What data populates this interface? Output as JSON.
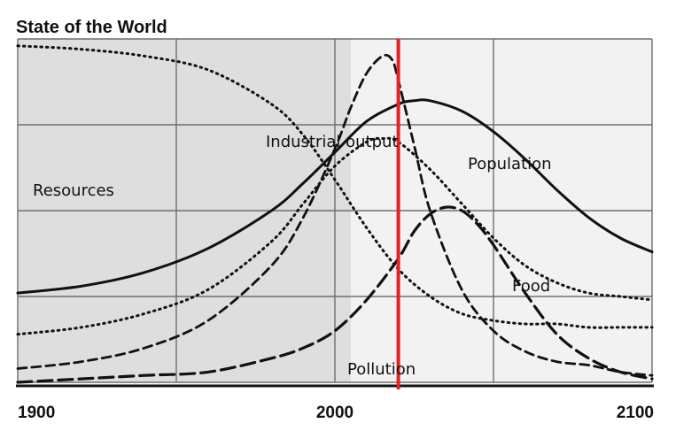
{
  "chart_data": {
    "type": "line",
    "title": "State of the World",
    "xlabel": "",
    "ylabel": "",
    "xlim": [
      1900,
      2100
    ],
    "ylim": [
      0,
      1
    ],
    "grid": true,
    "x_ticks": [
      "1900",
      "2000",
      "2100"
    ],
    "x_minor_gridlines": [
      1950,
      2050
    ],
    "shaded_region": [
      1900,
      2005
    ],
    "marker_line": {
      "x": 2020,
      "color": "#e02424"
    },
    "series": [
      {
        "name": "Population",
        "style": "solid",
        "x": [
          1900,
          1920,
          1940,
          1960,
          1980,
          1990,
          2000,
          2010,
          2020,
          2025,
          2030,
          2040,
          2050,
          2060,
          2070,
          2080,
          2090,
          2100
        ],
        "y": [
          0.26,
          0.28,
          0.32,
          0.39,
          0.5,
          0.58,
          0.67,
          0.76,
          0.81,
          0.82,
          0.82,
          0.79,
          0.73,
          0.65,
          0.56,
          0.48,
          0.42,
          0.38
        ]
      },
      {
        "name": "Industrial output",
        "style": "dashed",
        "x": [
          1900,
          1920,
          1940,
          1960,
          1980,
          1990,
          2000,
          2005,
          2010,
          2015,
          2018,
          2020,
          2025,
          2030,
          2040,
          2050,
          2060,
          2070,
          2080,
          2090,
          2100
        ],
        "y": [
          0.04,
          0.06,
          0.1,
          0.18,
          0.34,
          0.48,
          0.68,
          0.8,
          0.9,
          0.95,
          0.94,
          0.88,
          0.69,
          0.5,
          0.27,
          0.15,
          0.09,
          0.06,
          0.05,
          0.03,
          0.02
        ]
      },
      {
        "name": "Food",
        "style": "dotted",
        "x": [
          1900,
          1920,
          1940,
          1960,
          1980,
          1990,
          2000,
          2010,
          2015,
          2020,
          2030,
          2040,
          2050,
          2060,
          2070,
          2080,
          2090,
          2100
        ],
        "y": [
          0.14,
          0.16,
          0.2,
          0.27,
          0.41,
          0.52,
          0.63,
          0.7,
          0.71,
          0.7,
          0.62,
          0.52,
          0.42,
          0.34,
          0.29,
          0.26,
          0.25,
          0.24
        ]
      },
      {
        "name": "Resources",
        "style": "dotted",
        "x": [
          1900,
          1920,
          1940,
          1960,
          1980,
          1990,
          2000,
          2010,
          2020,
          2030,
          2040,
          2050,
          2060,
          2070,
          2080,
          2090,
          2100
        ],
        "y": [
          0.98,
          0.97,
          0.95,
          0.91,
          0.81,
          0.72,
          0.59,
          0.45,
          0.33,
          0.25,
          0.2,
          0.18,
          0.17,
          0.17,
          0.16,
          0.16,
          0.16
        ]
      },
      {
        "name": "Pollution",
        "style": "longdash",
        "x": [
          1900,
          1920,
          1940,
          1960,
          1980,
          1990,
          2000,
          2010,
          2020,
          2025,
          2030,
          2035,
          2040,
          2045,
          2050,
          2060,
          2070,
          2080,
          2090,
          2100
        ],
        "y": [
          0.0,
          0.01,
          0.02,
          0.03,
          0.07,
          0.1,
          0.15,
          0.24,
          0.36,
          0.44,
          0.49,
          0.51,
          0.5,
          0.46,
          0.4,
          0.26,
          0.14,
          0.07,
          0.03,
          0.01
        ]
      }
    ]
  }
}
